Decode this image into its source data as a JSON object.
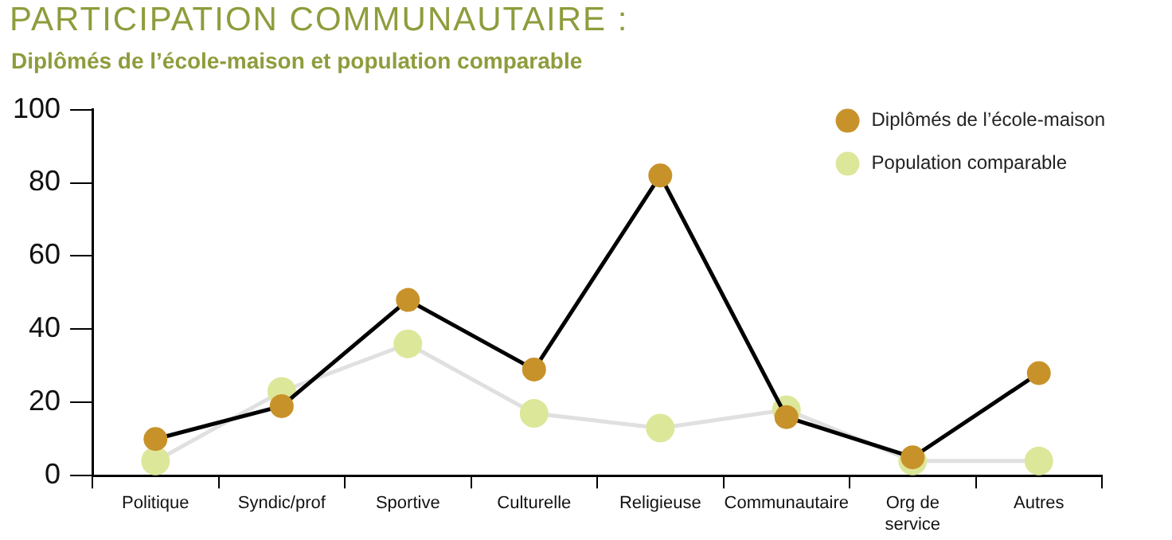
{
  "chart_data": {
    "type": "line",
    "title": "PARTICIPATION COMMUNAUTAIRE :",
    "subtitle": "Diplômés de l’école-maison et population comparable",
    "categories": [
      "Politique",
      "Syndic/prof",
      "Sportive",
      "Culturelle",
      "Religieuse",
      "Communautaire",
      "Org de service",
      "Autres"
    ],
    "series": [
      {
        "name": "Diplômés de l’école-maison",
        "color": "#c8922a",
        "values": [
          10,
          19,
          48,
          29,
          82,
          16,
          5,
          28
        ]
      },
      {
        "name": "Population comparable",
        "color": "#dde79a",
        "values": [
          4,
          23,
          36,
          17,
          13,
          18,
          4,
          4
        ]
      }
    ],
    "ylim": [
      0,
      100
    ],
    "yticks": [
      0,
      20,
      40,
      60,
      80,
      100
    ],
    "grid": false,
    "legend": "top right",
    "marker": "circle",
    "line_style": "solid"
  }
}
